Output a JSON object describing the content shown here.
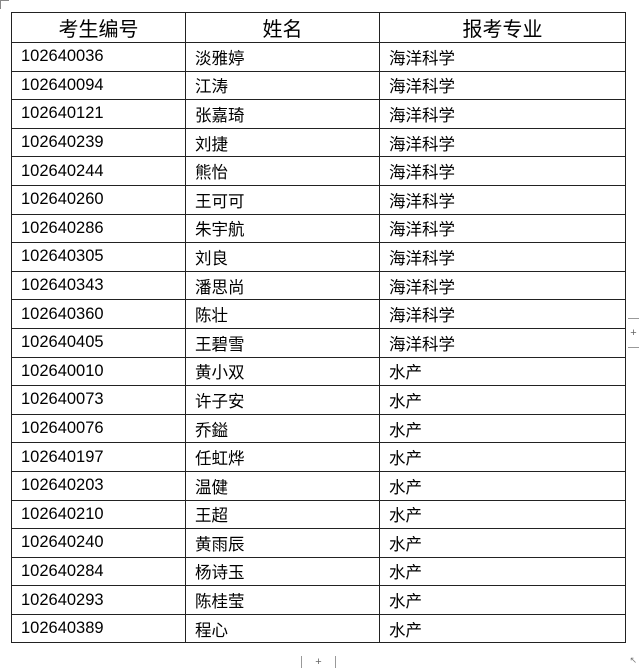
{
  "headers": [
    "考生编号",
    "姓名",
    "报考专业"
  ],
  "rows": [
    [
      "102640036",
      "淡雅婷",
      "海洋科学"
    ],
    [
      "102640094",
      "江涛",
      "海洋科学"
    ],
    [
      "102640121",
      "张嘉琦",
      "海洋科学"
    ],
    [
      "102640239",
      "刘捷",
      "海洋科学"
    ],
    [
      "102640244",
      "熊怡",
      "海洋科学"
    ],
    [
      "102640260",
      "王可可",
      "海洋科学"
    ],
    [
      "102640286",
      "朱宇航",
      "海洋科学"
    ],
    [
      "102640305",
      "刘良",
      "海洋科学"
    ],
    [
      "102640343",
      "潘思尚",
      "海洋科学"
    ],
    [
      "102640360",
      "陈壮",
      "海洋科学"
    ],
    [
      "102640405",
      "王碧雪",
      "海洋科学"
    ],
    [
      "102640010",
      "黄小双",
      "水产"
    ],
    [
      "102640073",
      "许子安",
      "水产"
    ],
    [
      "102640076",
      "乔鎰",
      "水产"
    ],
    [
      "102640197",
      "任虹烨",
      "水产"
    ],
    [
      "102640203",
      "温健",
      "水产"
    ],
    [
      "102640210",
      "王超",
      "水产"
    ],
    [
      "102640240",
      "黄雨辰",
      "水产"
    ],
    [
      "102640284",
      "杨诗玉",
      "水产"
    ],
    [
      "102640293",
      "陈桂莹",
      "水产"
    ],
    [
      "102640389",
      "程心",
      "水产"
    ]
  ],
  "controls": {
    "add_symbol": "+",
    "resize_symbol": "↖"
  }
}
